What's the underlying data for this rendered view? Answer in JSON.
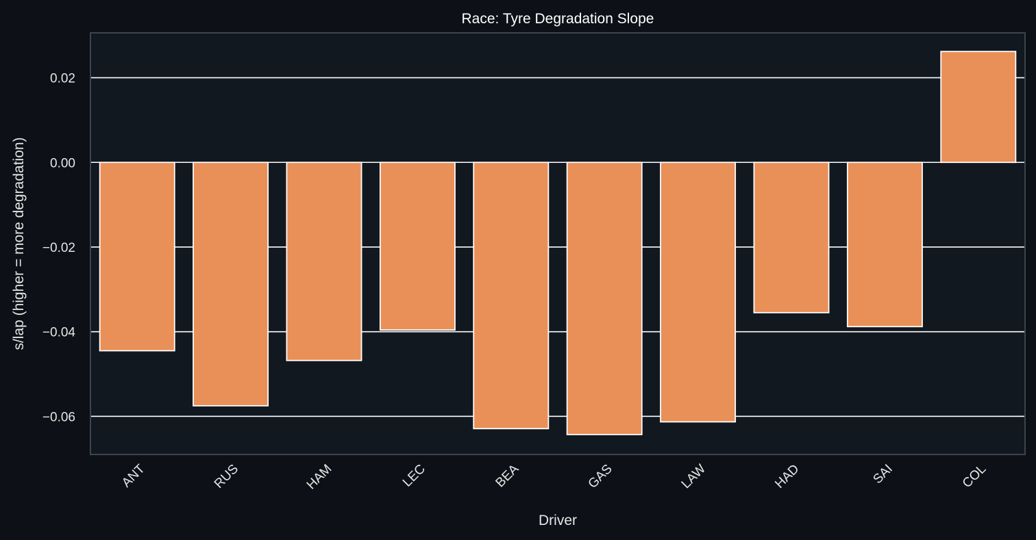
{
  "chart_data": {
    "type": "bar",
    "title": "Race: Tyre Degradation Slope",
    "xlabel": "Driver",
    "ylabel": "s/lap (higher = more degradation)",
    "categories": [
      "ANT",
      "RUS",
      "HAM",
      "LEC",
      "BEA",
      "GAS",
      "LAW",
      "HAD",
      "SAI",
      "COL"
    ],
    "values": [
      -0.0445,
      -0.0575,
      -0.0468,
      -0.0396,
      -0.0629,
      -0.0643,
      -0.0613,
      -0.0355,
      -0.0388,
      0.0262
    ],
    "ylim": [
      -0.069,
      0.0306
    ],
    "yticks": [
      0.02,
      0.0,
      -0.02,
      -0.04,
      -0.06
    ],
    "ytick_labels": [
      "0.02",
      "0.00",
      "−0.02",
      "−0.04",
      "−0.06"
    ],
    "grid": true,
    "legend": "none"
  },
  "colors": {
    "background": "#0d1117",
    "plot_background": "#111820",
    "bar_fill": "#e98f58",
    "bar_edge": "#ffffff",
    "grid": "#ffffff",
    "frame": "#3d4450",
    "text": "#e6e6e6"
  }
}
